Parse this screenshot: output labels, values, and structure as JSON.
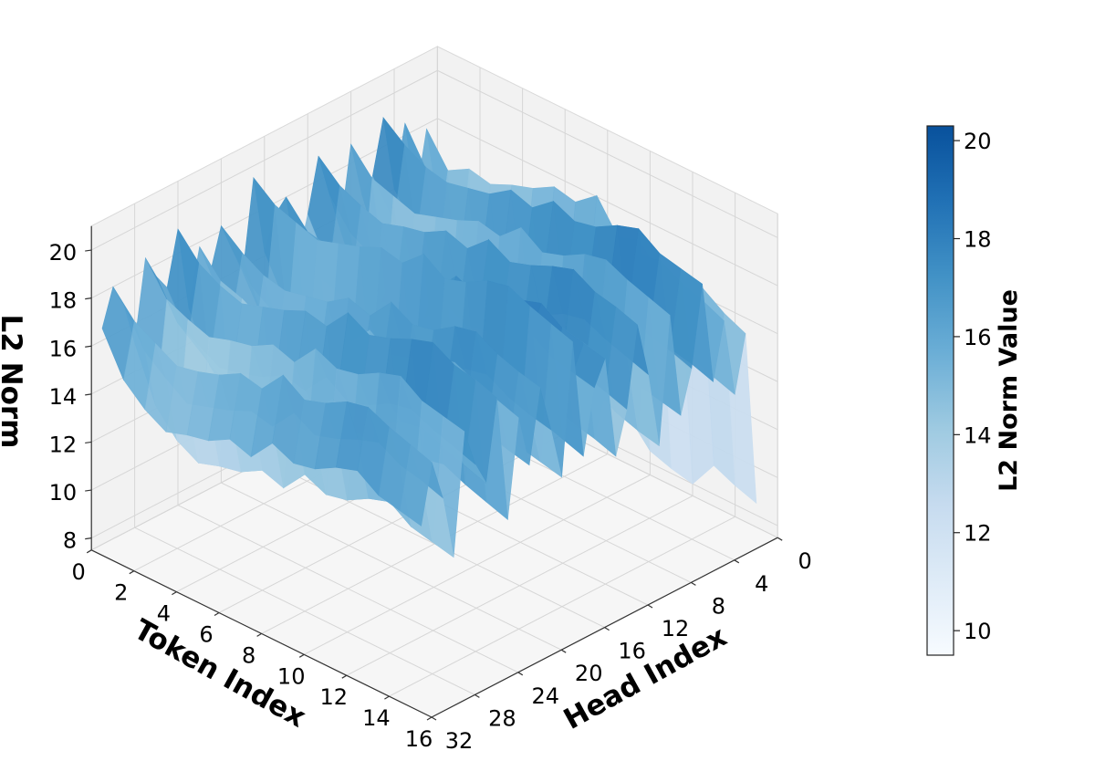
{
  "chart_data": {
    "type": "surface3d",
    "xlabel": "Token Index",
    "ylabel": "Head Index",
    "zlabel": "L2 Norm",
    "colorbar_label": "L2 Norm Value",
    "colormap": "Blues",
    "colormap_stops": [
      "#f7fbff",
      "#deebf7",
      "#c6dbef",
      "#9ecae1",
      "#6baed6",
      "#4292c6",
      "#2171b5",
      "#08519c"
    ],
    "x_ticks": [
      0,
      2,
      4,
      6,
      8,
      10,
      12,
      14,
      16
    ],
    "y_ticks": [
      0,
      4,
      8,
      12,
      16,
      20,
      24,
      28,
      32
    ],
    "z_ticks": [
      8,
      10,
      12,
      14,
      16,
      18,
      20
    ],
    "colorbar_ticks": [
      10,
      12,
      14,
      16,
      18,
      20
    ],
    "xlim": [
      0,
      16
    ],
    "ylim": [
      0,
      32
    ],
    "zlim": [
      7.5,
      21
    ],
    "colorbar_range": [
      9.5,
      20.3
    ],
    "grid": true,
    "token_index": [
      0,
      1,
      2,
      3,
      4,
      5,
      6,
      7,
      8,
      9,
      10,
      11,
      12,
      13,
      14,
      15
    ],
    "head_index": [
      0,
      1,
      2,
      3,
      4,
      5,
      6,
      7,
      8,
      9,
      10,
      11,
      12,
      13,
      14,
      15,
      16,
      17,
      18,
      19,
      20,
      21,
      22,
      23,
      24,
      25,
      26,
      27,
      28,
      29,
      30,
      31
    ],
    "l2_norm_by_token": [
      {
        "token": 0,
        "values": [
          14.5,
          17.8,
          15.2,
          18.5,
          16.0,
          19.2,
          17.0,
          16.5,
          18.8,
          15.5,
          17.2,
          19.0,
          16.8,
          15.0,
          18.0,
          17.5,
          16.2,
          19.5,
          15.8,
          17.0,
          18.2,
          16.5,
          17.8,
          15.5,
          19.0,
          16.8,
          17.5,
          18.5,
          15.2,
          17.0,
          18.0,
          16.5
        ]
      },
      {
        "token": 1,
        "values": [
          12.0,
          16.5,
          13.5,
          17.0,
          14.8,
          18.5,
          15.5,
          14.0,
          17.8,
          13.2,
          16.0,
          18.2,
          15.0,
          13.8,
          17.0,
          16.2,
          14.5,
          18.8,
          14.2,
          15.8,
          17.5,
          15.0,
          16.8,
          13.5,
          18.0,
          15.2,
          16.0,
          17.2,
          13.0,
          15.5,
          17.0,
          14.8
        ]
      },
      {
        "token": 2,
        "values": [
          9.5,
          17.0,
          12.5,
          16.5,
          13.8,
          18.0,
          14.8,
          13.0,
          17.5,
          12.2,
          15.5,
          17.8,
          14.5,
          12.8,
          16.8,
          15.8,
          13.5,
          18.5,
          13.0,
          15.2,
          17.0,
          14.2,
          16.5,
          12.5,
          17.5,
          14.5,
          15.5,
          16.8,
          12.0,
          14.8,
          16.5,
          14.0
        ]
      },
      {
        "token": 3,
        "values": [
          8.2,
          16.8,
          12.0,
          16.0,
          13.2,
          17.8,
          14.2,
          12.5,
          17.2,
          11.8,
          15.0,
          17.5,
          14.0,
          12.2,
          16.5,
          15.5,
          13.0,
          18.2,
          12.5,
          14.8,
          16.8,
          13.8,
          16.0,
          12.0,
          17.2,
          14.0,
          15.0,
          16.5,
          11.5,
          14.2,
          16.0,
          13.5
        ]
      },
      {
        "token": 4,
        "values": [
          8.0,
          17.2,
          12.2,
          16.2,
          13.5,
          18.0,
          14.5,
          12.8,
          17.5,
          12.0,
          15.2,
          17.8,
          14.2,
          12.5,
          16.8,
          15.8,
          13.2,
          18.5,
          12.8,
          15.0,
          17.0,
          14.0,
          16.2,
          12.2,
          17.5,
          14.2,
          15.2,
          16.8,
          11.8,
          14.5,
          16.2,
          13.8
        ]
      },
      {
        "token": 5,
        "values": [
          8.0,
          17.5,
          12.5,
          16.5,
          13.8,
          18.2,
          14.8,
          13.0,
          17.8,
          12.2,
          15.5,
          18.0,
          14.5,
          12.8,
          17.0,
          16.0,
          13.5,
          18.8,
          13.0,
          15.2,
          17.2,
          14.2,
          16.5,
          12.5,
          17.8,
          14.5,
          15.5,
          17.0,
          12.0,
          14.8,
          16.5,
          14.0
        ]
      },
      {
        "token": 6,
        "values": [
          9.0,
          18.0,
          13.0,
          17.0,
          14.2,
          18.8,
          15.2,
          13.5,
          18.2,
          12.8,
          16.0,
          18.5,
          15.0,
          13.2,
          17.5,
          16.5,
          14.0,
          19.2,
          13.5,
          15.8,
          17.8,
          14.8,
          17.0,
          13.0,
          18.2,
          15.0,
          16.0,
          17.5,
          12.5,
          15.2,
          17.0,
          14.5
        ]
      },
      {
        "token": 7,
        "values": [
          8.8,
          17.8,
          12.8,
          16.8,
          14.0,
          18.5,
          15.0,
          13.2,
          18.0,
          12.5,
          15.8,
          18.2,
          14.8,
          13.0,
          17.2,
          16.2,
          13.8,
          19.0,
          13.2,
          15.5,
          17.5,
          14.5,
          16.8,
          12.8,
          18.0,
          14.8,
          15.8,
          17.2,
          12.2,
          15.0,
          16.8,
          14.2
        ]
      },
      {
        "token": 8,
        "values": [
          10.5,
          18.5,
          13.8,
          17.5,
          15.0,
          19.2,
          16.0,
          14.2,
          18.8,
          13.5,
          16.8,
          19.0,
          15.8,
          14.0,
          18.2,
          17.2,
          14.8,
          19.8,
          14.2,
          16.5,
          18.5,
          15.5,
          17.8,
          13.8,
          19.0,
          15.8,
          16.8,
          18.2,
          13.2,
          16.0,
          17.8,
          15.2
        ]
      },
      {
        "token": 9,
        "values": [
          9.5,
          17.2,
          13.2,
          17.0,
          14.5,
          18.8,
          15.5,
          13.8,
          18.2,
          13.0,
          16.2,
          18.5,
          15.2,
          13.5,
          17.8,
          16.8,
          14.2,
          19.2,
          13.8,
          16.0,
          18.0,
          15.0,
          17.2,
          13.2,
          18.5,
          15.2,
          16.2,
          17.8,
          12.8,
          15.5,
          17.2,
          14.8
        ]
      },
      {
        "token": 10,
        "values": [
          8.5,
          17.5,
          13.5,
          17.2,
          14.8,
          19.0,
          15.8,
          14.0,
          18.5,
          13.2,
          16.5,
          18.8,
          15.5,
          13.8,
          18.0,
          17.0,
          14.5,
          19.5,
          14.0,
          16.2,
          18.2,
          15.2,
          17.5,
          13.5,
          18.8,
          15.5,
          16.5,
          18.0,
          13.0,
          15.8,
          17.5,
          15.0
        ]
      },
      {
        "token": 11,
        "values": [
          8.2,
          16.5,
          14.0,
          17.8,
          15.2,
          19.5,
          16.2,
          14.5,
          19.0,
          13.8,
          17.0,
          19.2,
          16.0,
          14.2,
          18.5,
          17.5,
          15.0,
          20.0,
          14.5,
          16.8,
          18.8,
          15.8,
          18.0,
          14.0,
          19.2,
          16.0,
          17.0,
          18.5,
          13.5,
          16.2,
          18.0,
          15.5
        ]
      },
      {
        "token": 12,
        "values": [
          8.0,
          16.0,
          14.5,
          18.0,
          15.5,
          19.8,
          16.5,
          14.8,
          19.2,
          14.0,
          17.2,
          19.5,
          16.2,
          14.5,
          18.8,
          17.8,
          15.2,
          20.2,
          14.8,
          17.0,
          19.0,
          16.0,
          18.2,
          14.2,
          19.5,
          16.2,
          17.2,
          18.8,
          13.8,
          16.5,
          18.2,
          15.8
        ]
      },
      {
        "token": 13,
        "values": [
          9.2,
          16.8,
          14.2,
          17.5,
          15.0,
          19.2,
          16.0,
          14.2,
          18.8,
          13.5,
          16.8,
          19.0,
          15.8,
          14.0,
          18.2,
          17.2,
          14.8,
          19.8,
          14.2,
          16.5,
          18.5,
          15.5,
          17.8,
          13.8,
          19.0,
          15.8,
          16.8,
          18.2,
          13.2,
          16.0,
          17.8,
          15.2
        ]
      },
      {
        "token": 14,
        "values": [
          8.8,
          16.2,
          13.8,
          17.2,
          14.8,
          19.0,
          15.8,
          14.0,
          18.5,
          13.2,
          16.5,
          18.8,
          15.5,
          13.8,
          18.0,
          17.0,
          14.5,
          19.5,
          14.0,
          16.2,
          18.2,
          15.2,
          17.5,
          13.5,
          18.8,
          15.5,
          16.5,
          18.0,
          13.0,
          15.8,
          17.5,
          15.0
        ]
      },
      {
        "token": 15,
        "values": [
          8.5,
          15.8,
          13.5,
          16.8,
          14.5,
          18.8,
          15.5,
          13.8,
          18.2,
          13.0,
          16.2,
          18.5,
          15.2,
          13.5,
          17.8,
          16.8,
          14.2,
          19.2,
          13.8,
          16.0,
          18.0,
          15.0,
          17.2,
          13.2,
          18.5,
          15.2,
          16.2,
          17.8,
          12.8,
          15.5,
          17.2,
          14.8
        ]
      }
    ]
  }
}
